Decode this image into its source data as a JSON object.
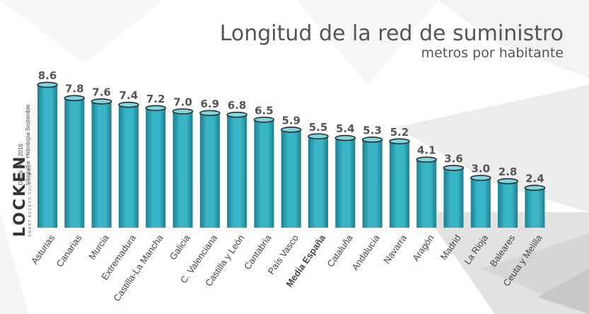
{
  "title": "Longitud de la red de suministro",
  "subtitle": "metros por habitante",
  "brand": {
    "logo_text": "LOCKEN",
    "tagline": "SMART ACCESS SOLUTIONS"
  },
  "credits": {
    "source": "Datos: INE 2016",
    "author": "Infografía: Hidrología Sostenible"
  },
  "colors": {
    "bar_fill": "#3ab5c8",
    "bar_dark": "#1c7f8f",
    "value_label": "#555555",
    "category_label": "#444444"
  },
  "chart_data": {
    "type": "bar",
    "title": "Longitud de la red de suministro",
    "subtitle": "metros por habitante",
    "categories": [
      "Asturias",
      "Canarias",
      "Murcia",
      "Extremadura",
      "Castilla-La Mancha",
      "Galicia",
      "C. Valenciana",
      "Castilla y León",
      "Cantabria",
      "País Vasco",
      "Media España",
      "Cataluña",
      "Andalucía",
      "Navarra",
      "Aragón",
      "Madrid",
      "La Rioja",
      "Baleares",
      "Ceuta y Melilla"
    ],
    "values": [
      8.6,
      7.8,
      7.6,
      7.4,
      7.2,
      7.0,
      6.9,
      6.8,
      6.5,
      5.9,
      5.5,
      5.4,
      5.3,
      5.2,
      4.1,
      3.6,
      3.0,
      2.8,
      2.4
    ],
    "value_labels": [
      "8.6",
      "7.8",
      "7.6",
      "7.4",
      "7.2",
      "7.0",
      "6.9",
      "6.8",
      "6.5",
      "5.9",
      "5.5",
      "5.4",
      "5.3",
      "5.2",
      "4.1",
      "3.6",
      "3.0",
      "2.8",
      "2.4"
    ],
    "highlight": "Media España",
    "ylim": [
      0,
      9
    ],
    "grid": false,
    "legend": "none",
    "xlabel": "",
    "ylabel": ""
  }
}
